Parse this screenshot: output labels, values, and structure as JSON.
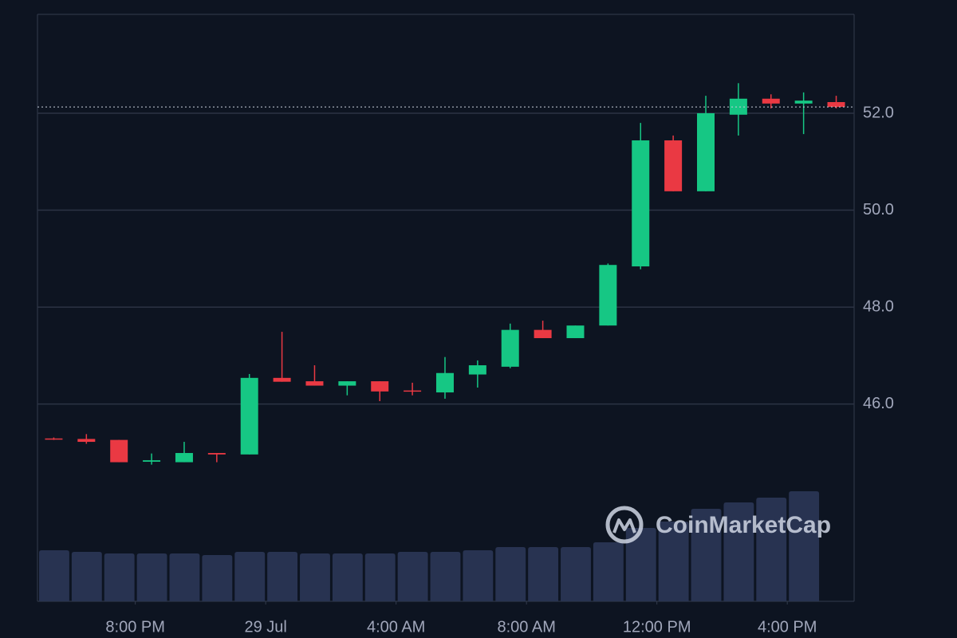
{
  "chart_data": {
    "type": "candlestick",
    "x": [
      17.5,
      18.5,
      19.5,
      20.5,
      21.5,
      22.5,
      23.5,
      24.5,
      25.5,
      26.5,
      27.5,
      28.5,
      29.5,
      30.5,
      31.5,
      32.5,
      33.5,
      34.5,
      35.5,
      36.5,
      37.5,
      38.5,
      39.5,
      40.5,
      41.5
    ],
    "open": [
      45.29,
      45.28,
      45.26,
      44.81,
      44.8,
      44.99,
      44.96,
      46.54,
      46.47,
      46.38,
      46.47,
      46.28,
      46.24,
      46.61,
      46.77,
      47.53,
      47.36,
      47.62,
      48.84,
      51.44,
      50.39,
      51.97,
      52.3,
      52.2,
      52.23
    ],
    "high": [
      45.31,
      45.38,
      45.26,
      44.98,
      45.22,
      44.99,
      46.62,
      47.49,
      46.8,
      46.47,
      46.47,
      46.44,
      46.97,
      46.9,
      47.66,
      47.72,
      47.62,
      48.9,
      51.8,
      51.54,
      52.36,
      52.62,
      52.39,
      52.43,
      52.36
    ],
    "low": [
      45.26,
      45.18,
      44.8,
      44.75,
      44.8,
      44.8,
      44.96,
      46.46,
      46.38,
      46.18,
      46.06,
      46.18,
      46.11,
      46.34,
      46.74,
      47.36,
      47.36,
      47.62,
      48.78,
      50.39,
      50.39,
      51.54,
      52.1,
      51.57,
      52.1
    ],
    "close": [
      45.28,
      45.22,
      44.8,
      44.84,
      44.99,
      44.96,
      46.54,
      46.46,
      46.38,
      46.47,
      46.26,
      46.26,
      46.64,
      46.8,
      47.53,
      47.36,
      47.62,
      48.87,
      51.44,
      50.39,
      52.0,
      52.3,
      52.2,
      52.26,
      52.13
    ],
    "volume": [
      64,
      62,
      60,
      60,
      60,
      58,
      62,
      62,
      60,
      60,
      60,
      62,
      62,
      64,
      68,
      68,
      68,
      74,
      92,
      100,
      116,
      124,
      130,
      138,
      null
    ],
    "up_color": "#16c784",
    "down_color": "#ea3943",
    "volume_color": "#283351",
    "xlim": [
      17,
      42.05
    ],
    "xticks": [
      {
        "value": 20,
        "label": "8:00 PM"
      },
      {
        "value": 24,
        "label": "29 Jul"
      },
      {
        "value": 28,
        "label": "4:00 AM"
      },
      {
        "value": 32,
        "label": "8:00 AM"
      },
      {
        "value": 36,
        "label": "12:00 PM"
      },
      {
        "value": 40,
        "label": "4:00 PM"
      }
    ],
    "ylim": [
      41.93,
      54.04
    ],
    "yticks": [
      {
        "value": 46,
        "label": "46.0"
      },
      {
        "value": 48,
        "label": "48.0"
      },
      {
        "value": 50,
        "label": "50.0"
      },
      {
        "value": 52,
        "label": "52.0"
      }
    ],
    "grid": true,
    "watermark": "CoinMarketCap"
  }
}
